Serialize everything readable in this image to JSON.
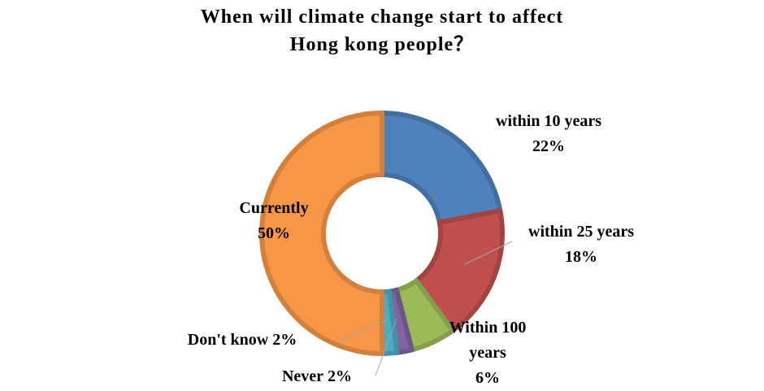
{
  "chart_data": {
    "type": "donut",
    "title": [
      "When will climate change start to affect",
      "Hong kong people？"
    ],
    "categories": [
      "within 10 years",
      "within 25 years",
      "Within 100 years",
      "Never",
      "Don't know",
      "Currently"
    ],
    "values": [
      22,
      18,
      6,
      2,
      2,
      50
    ],
    "value_labels": [
      "22%",
      "18%",
      "6%",
      "2%",
      "2%",
      "50%"
    ],
    "colors": [
      "#4f81bd",
      "#c0504d",
      "#9bbb59",
      "#8064a2",
      "#4bacc6",
      "#f79646"
    ]
  }
}
